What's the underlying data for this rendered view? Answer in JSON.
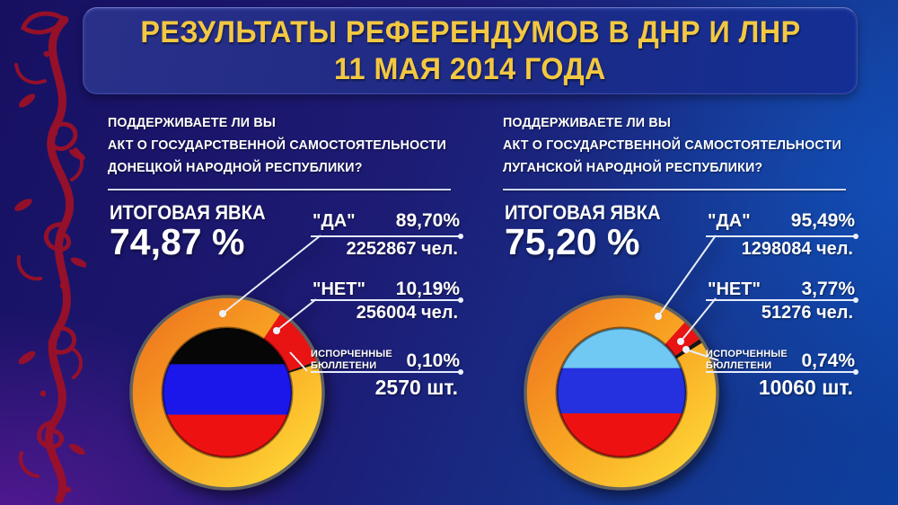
{
  "title": {
    "line1": "РЕЗУЛЬТАТЫ РЕФЕРЕНДУМОВ В ДНР И ЛНР",
    "line2": "11 МАЯ 2014 ГОДА"
  },
  "panels": [
    {
      "region": "ДНР",
      "question_lines": [
        "ПОДДЕРЖИВАЕТЕ ЛИ ВЫ",
        "АКТ О ГОСУДАРСТВЕННОЙ САМОСТОЯТЕЛЬНОСТИ",
        "ДОНЕЦКОЙ НАРОДНОЙ РЕСПУБЛИКИ?"
      ],
      "turnout_label": "ИТОГОВАЯ ЯВКА",
      "turnout_value": "74,87 %",
      "yes": {
        "label": "\"ДА\"",
        "percent": "89,70%",
        "count": "2252867 чел."
      },
      "no": {
        "label": "\"НЕТ\"",
        "percent": "10,19%",
        "count": "256004 чел."
      },
      "spoiled": {
        "label_line1": "ИСПОРЧЕННЫЕ",
        "label_line2": "БЮЛЛЕТЕНИ",
        "percent": "0,10%",
        "count": "2570 шт."
      }
    },
    {
      "region": "ЛНР",
      "question_lines": [
        "ПОДДЕРЖИВАЕТЕ ЛИ ВЫ",
        "АКТ О ГОСУДАРСТВЕННОЙ САМОСТОЯТЕЛЬНОСТИ",
        "ЛУГАНСКОЙ НАРОДНОЙ РЕСПУБЛИКИ?"
      ],
      "turnout_label": "ИТОГОВАЯ ЯВКА",
      "turnout_value": "75,20 %",
      "yes": {
        "label": "\"ДА\"",
        "percent": "95,49%",
        "count": "1298084 чел."
      },
      "no": {
        "label": "\"НЕТ\"",
        "percent": "3,77%",
        "count": "51276 чел."
      },
      "spoiled": {
        "label_line1": "ИСПОРЧЕННЫЕ",
        "label_line2": "БЮЛЛЕТЕНИ",
        "percent": "0,74%",
        "count": "10060 шт."
      }
    }
  ],
  "chart_data": [
    {
      "type": "pie",
      "title": "Референдум ДНР 11 мая 2014",
      "turnout_percent": 74.87,
      "labels": [
        "\"ДА\"",
        "\"НЕТ\"",
        "ИСПОРЧЕННЫЕ БЮЛЛЕТЕНИ"
      ],
      "values": [
        89.7,
        10.19,
        0.1
      ],
      "counts": [
        2252867,
        256004,
        2570
      ],
      "count_units": [
        "чел.",
        "чел.",
        "шт."
      ],
      "colors": {
        "yes_gradient": [
          "#ec6d1d",
          "#f9a623",
          "#ffe23a"
        ],
        "no": "#e81313",
        "spoiled": "#161616",
        "ring_border": "#616161"
      },
      "no_start_angle_deg": 34,
      "center_flag_stripes": [
        "#060606",
        "#1b17ea",
        "#ee1111"
      ],
      "center_flag_fractions": [
        0.28,
        0.39,
        0.33
      ],
      "legend_position": "right",
      "donut": true
    },
    {
      "type": "pie",
      "title": "Референдум ЛНР 11 мая 2014",
      "turnout_percent": 75.2,
      "labels": [
        "\"ДА\"",
        "\"НЕТ\"",
        "ИСПОРЧЕННЫЕ БЮЛЛЕТЕНИ"
      ],
      "values": [
        95.49,
        3.77,
        0.74
      ],
      "counts": [
        1298084,
        51276,
        10060
      ],
      "count_units": [
        "чел.",
        "чел.",
        "шт."
      ],
      "colors": {
        "yes_gradient": [
          "#ec6d1d",
          "#f9a623",
          "#ffe23a"
        ],
        "no": "#e81313",
        "spoiled": "#161616",
        "ring_border": "#616161"
      },
      "no_start_angle_deg": 42,
      "center_flag_stripes": [
        "#6fc9f3",
        "#2531de",
        "#ee1111"
      ],
      "center_flag_fractions": [
        0.31,
        0.35,
        0.34
      ],
      "legend_position": "right",
      "donut": true
    }
  ]
}
